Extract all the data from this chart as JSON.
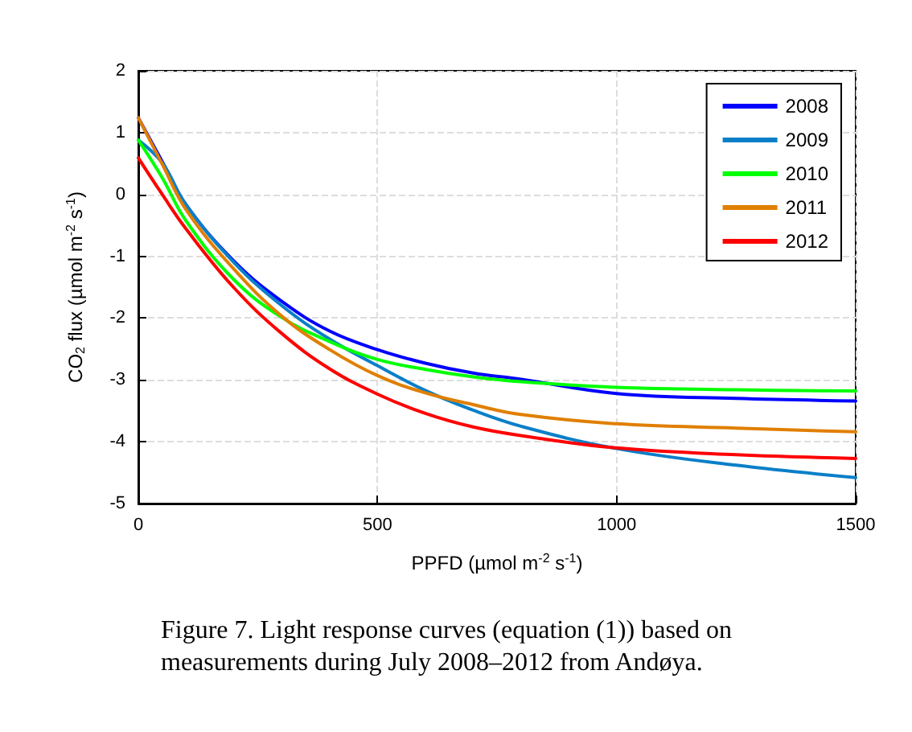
{
  "chart_data": {
    "type": "line",
    "xlabel": "PPFD (µmol m$^{-2}$ s$^{-1}$)",
    "ylabel": "CO$_{2}$ flux (µmol m$^{-2}$ s$^{-1}$)",
    "x": [
      0,
      50,
      100,
      200,
      300,
      400,
      500,
      600,
      700,
      800,
      1000,
      1250,
      1500
    ],
    "series": [
      {
        "name": "2008",
        "color": "#0000ff",
        "values": [
          1.24,
          0.53,
          -0.17,
          -1.08,
          -1.73,
          -2.21,
          -2.51,
          -2.73,
          -2.89,
          -2.99,
          -3.22,
          -3.3,
          -3.34
        ]
      },
      {
        "name": "2009",
        "color": "#0a7fc8",
        "values": [
          0.88,
          0.51,
          -0.17,
          -1.1,
          -1.8,
          -2.34,
          -2.77,
          -3.17,
          -3.49,
          -3.75,
          -4.11,
          -4.38,
          -4.58
        ]
      },
      {
        "name": "2010",
        "color": "#00ff00",
        "values": [
          0.88,
          0.27,
          -0.43,
          -1.38,
          -1.99,
          -2.38,
          -2.67,
          -2.83,
          -2.95,
          -3.03,
          -3.12,
          -3.16,
          -3.18
        ]
      },
      {
        "name": "2011",
        "color": "#e07f00",
        "values": [
          1.24,
          0.49,
          -0.25,
          -1.21,
          -1.97,
          -2.51,
          -2.93,
          -3.21,
          -3.4,
          -3.56,
          -3.71,
          -3.78,
          -3.84
        ]
      },
      {
        "name": "2012",
        "color": "#ff0000",
        "values": [
          0.59,
          0.0,
          -0.56,
          -1.51,
          -2.25,
          -2.82,
          -3.23,
          -3.54,
          -3.76,
          -3.9,
          -4.1,
          -4.21,
          -4.27
        ]
      }
    ],
    "xlim": [
      0,
      1500
    ],
    "xticks": [
      0,
      500,
      1000,
      1500
    ],
    "ylim": [
      -5,
      2
    ],
    "yticks": [
      -5,
      -4,
      -3,
      -2,
      -1,
      0,
      1,
      2
    ],
    "grid": true,
    "legend": "top right",
    "marker": "none",
    "line_style": "solid",
    "annotations": [
      "Figure 7. Light response curves (equation (1)) based on measurements during July 2008–2012 from Andøya."
    ]
  }
}
